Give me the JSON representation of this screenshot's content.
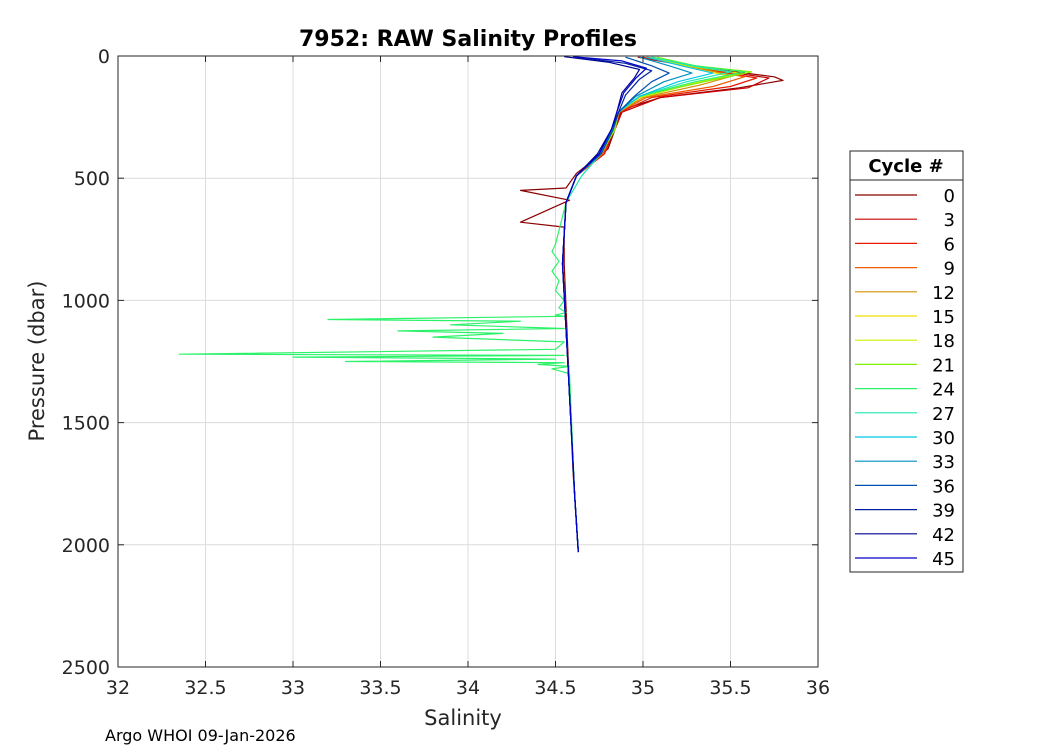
{
  "chart_data": {
    "type": "line",
    "title": "7952: RAW Salinity Profiles",
    "xlabel": "Salinity",
    "ylabel": "Pressure (dbar)",
    "xlim": [
      32,
      36
    ],
    "ylim": [
      0,
      2500
    ],
    "y_reversed": true,
    "grid": true,
    "xticks": [
      32,
      32.5,
      33,
      33.5,
      34,
      34.5,
      35,
      35.5,
      36
    ],
    "xtick_labels": [
      "32",
      "32.5",
      "33",
      "33.5",
      "34",
      "34.5",
      "35",
      "35.5",
      "36"
    ],
    "yticks": [
      0,
      500,
      1000,
      1500,
      2000,
      2500
    ],
    "ytick_labels": [
      "0",
      "500",
      "1000",
      "1500",
      "2000",
      "2500"
    ],
    "legend": {
      "title": "Cycle #",
      "placement": "right-outside",
      "entries": [
        "0",
        "3",
        "6",
        "9",
        "12",
        "15",
        "18",
        "21",
        "24",
        "27",
        "30",
        "33",
        "36",
        "39",
        "42",
        "45"
      ],
      "colors": [
        "#8b0000",
        "#c80000",
        "#e61a00",
        "#f05a00",
        "#d09000",
        "#f5e000",
        "#c8f000",
        "#7ef000",
        "#2cf26a",
        "#1ee6b4",
        "#00c8e6",
        "#0090c0",
        "#0050b0",
        "#0020a0",
        "#000090",
        "#0000c8"
      ]
    },
    "series": [
      {
        "name": "0",
        "color": "#8b0000",
        "s": [
          34.97,
          35.25,
          35.75,
          35.8,
          35.55,
          35.1,
          34.88,
          34.85,
          34.8,
          34.62,
          34.56,
          34.3,
          34.58,
          34.3,
          34.55,
          34.55,
          34.57,
          34.6,
          34.63
        ],
        "p": [
          5,
          40,
          85,
          100,
          130,
          170,
          220,
          280,
          380,
          480,
          540,
          550,
          590,
          680,
          700,
          850,
          1200,
          1700,
          2030
        ]
      },
      {
        "name": "3",
        "color": "#c80000",
        "s": [
          34.98,
          35.3,
          35.72,
          35.6,
          35.1,
          34.88,
          34.84,
          34.78,
          34.62,
          34.56,
          34.54,
          34.57,
          34.61,
          34.63
        ],
        "p": [
          5,
          45,
          90,
          130,
          170,
          230,
          300,
          400,
          490,
          600,
          850,
          1250,
          1800,
          2030
        ]
      },
      {
        "name": "6",
        "color": "#e61a00",
        "s": [
          35.0,
          35.28,
          35.65,
          35.5,
          35.05,
          34.87,
          34.83,
          34.78,
          34.62,
          34.56,
          34.54,
          34.57,
          34.61,
          34.63
        ],
        "p": [
          5,
          45,
          90,
          125,
          170,
          230,
          300,
          400,
          490,
          600,
          850,
          1250,
          1800,
          2030
        ]
      },
      {
        "name": "9",
        "color": "#f05a00",
        "s": [
          35.02,
          35.26,
          35.58,
          35.4,
          35.02,
          34.86,
          34.83,
          34.77,
          34.62,
          34.56,
          34.54,
          34.57,
          34.61,
          34.63
        ],
        "p": [
          5,
          45,
          85,
          125,
          170,
          230,
          300,
          400,
          490,
          600,
          850,
          1250,
          1800,
          2030
        ]
      },
      {
        "name": "12",
        "color": "#d09000",
        "s": [
          35.03,
          35.24,
          35.52,
          35.32,
          35.0,
          34.86,
          34.83,
          34.76,
          34.62,
          34.56,
          34.54,
          34.57,
          34.61,
          34.63
        ],
        "p": [
          5,
          40,
          80,
          120,
          170,
          230,
          300,
          400,
          490,
          600,
          850,
          1250,
          1800,
          2030
        ]
      },
      {
        "name": "15",
        "color": "#f5e000",
        "s": [
          35.05,
          35.22,
          35.48,
          35.25,
          34.98,
          34.86,
          34.84,
          34.76,
          34.62,
          34.56,
          34.54,
          34.57,
          34.61,
          34.63
        ],
        "p": [
          5,
          40,
          80,
          120,
          170,
          230,
          300,
          400,
          490,
          600,
          850,
          1250,
          1800,
          2030
        ]
      },
      {
        "name": "18",
        "color": "#c8f000",
        "s": [
          35.06,
          35.25,
          35.55,
          35.3,
          34.98,
          34.86,
          34.84,
          34.76,
          34.62,
          34.56,
          34.54,
          34.57,
          34.61,
          34.63
        ],
        "p": [
          5,
          40,
          70,
          110,
          170,
          230,
          300,
          400,
          490,
          600,
          850,
          1250,
          1800,
          2030
        ]
      },
      {
        "name": "21",
        "color": "#7ef000",
        "s": [
          35.08,
          35.3,
          35.62,
          35.35,
          34.98,
          34.86,
          34.84,
          34.76,
          34.62,
          34.56,
          34.54,
          34.57,
          34.61,
          34.63
        ],
        "p": [
          5,
          40,
          65,
          105,
          165,
          230,
          300,
          400,
          490,
          600,
          850,
          1250,
          1800,
          2030
        ]
      },
      {
        "name": "24",
        "color": "#2cf26a",
        "s": [
          35.05,
          35.3,
          35.58,
          35.3,
          34.98,
          34.86,
          34.83,
          34.75,
          34.62,
          34.56,
          34.5,
          34.48,
          34.52,
          34.48,
          34.52,
          34.5,
          34.55,
          34.52,
          34.56,
          34.5,
          34.55,
          33.2,
          34.3,
          33.9,
          34.55,
          33.6,
          34.2,
          33.8,
          34.55,
          34.5,
          32.35,
          34.55,
          33.0,
          34.5,
          33.3,
          34.55,
          34.4,
          34.58,
          34.48,
          34.58,
          34.61,
          34.63
        ],
        "p": [
          5,
          40,
          65,
          105,
          165,
          230,
          300,
          400,
          490,
          600,
          770,
          800,
          840,
          880,
          920,
          960,
          1000,
          1030,
          1050,
          1060,
          1065,
          1078,
          1085,
          1100,
          1115,
          1125,
          1135,
          1150,
          1170,
          1200,
          1220,
          1225,
          1232,
          1240,
          1250,
          1255,
          1262,
          1270,
          1280,
          1300,
          1800,
          2030
        ]
      },
      {
        "name": "27",
        "color": "#1ee6b4",
        "s": [
          35.05,
          35.28,
          35.5,
          35.25,
          34.98,
          34.86,
          34.83,
          34.76,
          34.65,
          34.56,
          34.54,
          34.57,
          34.61,
          34.63
        ],
        "p": [
          5,
          40,
          65,
          105,
          165,
          230,
          300,
          400,
          490,
          600,
          850,
          1250,
          1800,
          2030
        ]
      },
      {
        "name": "30",
        "color": "#00c8e6",
        "s": [
          35.02,
          35.22,
          35.4,
          35.2,
          34.98,
          34.86,
          34.83,
          34.76,
          34.62,
          34.56,
          34.54,
          34.57,
          34.61,
          34.63
        ],
        "p": [
          5,
          40,
          70,
          105,
          165,
          230,
          300,
          400,
          490,
          600,
          850,
          1250,
          1800,
          2030
        ]
      },
      {
        "name": "33",
        "color": "#0090c0",
        "s": [
          34.98,
          35.15,
          35.28,
          35.12,
          34.96,
          34.86,
          34.83,
          34.76,
          34.62,
          34.56,
          34.54,
          34.57,
          34.61,
          34.63
        ],
        "p": [
          5,
          40,
          70,
          105,
          165,
          230,
          300,
          400,
          490,
          600,
          850,
          1250,
          1800,
          2030
        ]
      },
      {
        "name": "36",
        "color": "#0050b0",
        "s": [
          34.9,
          35.05,
          35.15,
          35.05,
          34.95,
          34.86,
          34.83,
          34.76,
          34.62,
          34.56,
          34.54,
          34.57,
          34.61,
          34.63
        ],
        "p": [
          5,
          40,
          70,
          105,
          165,
          230,
          300,
          400,
          490,
          600,
          850,
          1250,
          1800,
          2030
        ]
      },
      {
        "name": "39",
        "color": "#0020a0",
        "s": [
          34.62,
          34.9,
          35.05,
          34.98,
          34.9,
          34.86,
          34.82,
          34.75,
          34.62,
          34.56,
          34.54,
          34.57,
          34.61,
          34.63
        ],
        "p": [
          5,
          30,
          60,
          95,
          160,
          230,
          300,
          400,
          490,
          600,
          850,
          1250,
          1800,
          2030
        ]
      },
      {
        "name": "42",
        "color": "#000090",
        "s": [
          34.55,
          34.8,
          34.98,
          34.95,
          34.88,
          34.85,
          34.82,
          34.74,
          34.62,
          34.56,
          34.54,
          34.57,
          34.61,
          34.63
        ],
        "p": [
          3,
          25,
          55,
          90,
          150,
          230,
          300,
          400,
          490,
          600,
          850,
          1250,
          1800,
          2030
        ]
      },
      {
        "name": "45",
        "color": "#0000c8",
        "s": [
          34.6,
          34.88,
          35.02,
          34.96,
          34.89,
          34.85,
          34.82,
          34.75,
          34.62,
          34.56,
          34.54,
          34.57,
          34.61,
          34.63
        ],
        "p": [
          3,
          20,
          50,
          90,
          150,
          230,
          300,
          400,
          490,
          600,
          850,
          1250,
          1800,
          2030
        ]
      }
    ]
  },
  "footer": "Argo WHOI 09-Jan-2026"
}
